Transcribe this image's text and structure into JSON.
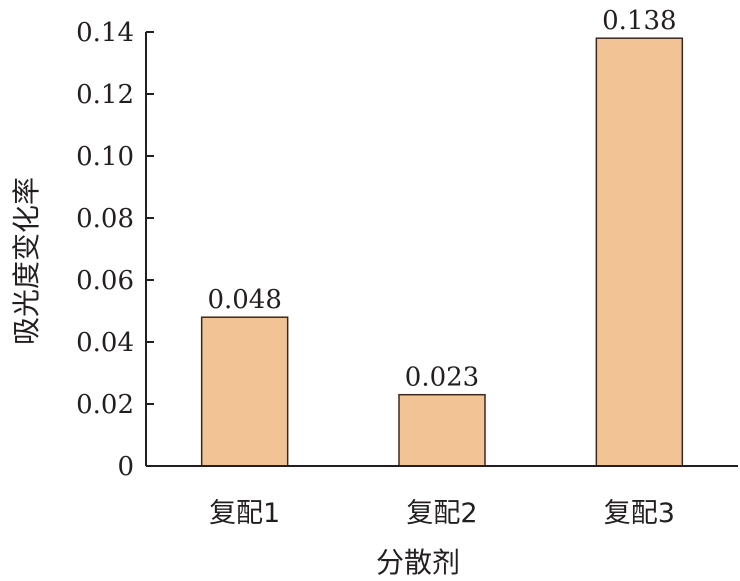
{
  "chart_data": {
    "type": "bar",
    "categories": [
      "复配1",
      "复配2",
      "复配3"
    ],
    "values": [
      0.048,
      0.023,
      0.138
    ],
    "data_labels": [
      "0.048",
      "0.023",
      "0.138"
    ],
    "title": "",
    "xlabel": "分散剂",
    "ylabel": "吸光度变化率",
    "ylim": [
      0,
      0.14
    ],
    "yticks": [
      0,
      0.02,
      0.04,
      0.06,
      0.08,
      0.1,
      0.12,
      0.14
    ],
    "ytick_labels": [
      "0",
      "0.02",
      "0.04",
      "0.06",
      "0.08",
      "0.10",
      "0.12",
      "0.14"
    ],
    "grid": false,
    "legend": "none",
    "colors": {
      "bar_fill": "#F2C394",
      "bar_stroke": "#3a2a1e",
      "axis": "#231f20"
    }
  }
}
